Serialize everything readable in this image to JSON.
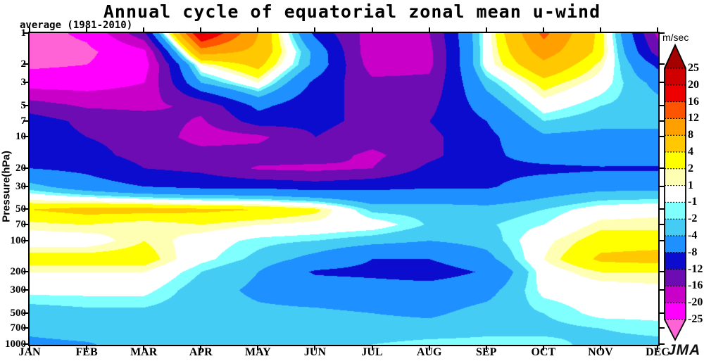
{
  "header": {
    "title": "Annual cycle of equatorial zonal mean u-wind",
    "subtitle": "average (1981-2010)"
  },
  "branding": {
    "logo_text": "JMA"
  },
  "colorbar": {
    "unit_label": "m/sec"
  },
  "chart_data": {
    "type": "filled_contour",
    "title": "Annual cycle of equatorial zonal mean u-wind",
    "subtitle": "average (1981-2010)",
    "units": "m/sec",
    "ylabel": "Pressure(hPa)",
    "y_scale": "log",
    "ylim_hpa": [
      1,
      1000
    ],
    "pressure_ticks": [
      1,
      2,
      3,
      5,
      7,
      10,
      20,
      30,
      50,
      70,
      100,
      200,
      300,
      500,
      700,
      1000
    ],
    "months": [
      "JAN",
      "FEB",
      "MAR",
      "APR",
      "MAY",
      "JUN",
      "JUL",
      "AUG",
      "SEP",
      "OCT",
      "NOV",
      "DEC"
    ],
    "contour_levels": [
      -25,
      -20,
      -16,
      -12,
      -8,
      -4,
      -2,
      -1,
      1,
      2,
      4,
      8,
      12,
      16,
      20,
      25
    ],
    "band_colors": [
      "#ff63d6",
      "#ff00ff",
      "#c800c8",
      "#6e0cb4",
      "#0c0cce",
      "#1e90ff",
      "#44ccf4",
      "#80ffff",
      "#ffffff",
      "#ffffb4",
      "#ffff00",
      "#ffc800",
      "#ffa000",
      "#ff5400",
      "#ee0000",
      "#d00000",
      "#a40000"
    ],
    "grid": [
      {
        "p": 1,
        "u": [
          -27,
          -24,
          -13,
          21,
          8,
          -9,
          -18,
          -16,
          0,
          13,
          3,
          -17
        ]
      },
      {
        "p": 1.5,
        "u": [
          -27,
          -26,
          -21,
          10,
          7,
          -5,
          -19,
          -17,
          0,
          10,
          3,
          -14
        ]
      },
      {
        "p": 2,
        "u": [
          -26,
          -25,
          -22,
          1,
          5,
          -5,
          -18,
          -17,
          0,
          7,
          1.5,
          -9
        ]
      },
      {
        "p": 3,
        "u": [
          -22,
          -22,
          -20,
          -4,
          1,
          -9,
          -15,
          -15,
          -3,
          3,
          0,
          -5
        ]
      },
      {
        "p": 5,
        "u": [
          -14,
          -16.5,
          -17,
          -15,
          -7,
          -11,
          -13,
          -13,
          -6,
          0,
          -2,
          -3
        ]
      },
      {
        "p": 7,
        "u": [
          -10,
          -13,
          -14,
          -16.5,
          -10,
          -11,
          -13,
          -12,
          -8,
          -2,
          -3,
          -3
        ]
      },
      {
        "p": 10,
        "u": [
          -10,
          -12,
          -13,
          -18,
          -17,
          -12,
          -14,
          -13,
          -9,
          -4.5,
          -5,
          -5
        ]
      },
      {
        "p": 15,
        "u": [
          -9,
          -11,
          -13,
          -14,
          -14,
          -14,
          -17,
          -13,
          -9,
          -6,
          -5,
          -6
        ]
      },
      {
        "p": 20,
        "u": [
          -8,
          -9,
          -12,
          -13,
          -16.5,
          -17,
          -16,
          -11,
          -9,
          -9,
          -8.5,
          -8.5
        ]
      },
      {
        "p": 30,
        "u": [
          -3,
          -6,
          -8,
          -9,
          -9,
          -10,
          -9,
          -8.5,
          -8.5,
          -6,
          -5,
          -5
        ]
      },
      {
        "p": 50,
        "u": [
          4,
          5,
          5,
          4.5,
          4,
          2.5,
          -2.5,
          -2.5,
          -3,
          -2,
          0,
          0.5
        ]
      },
      {
        "p": 70,
        "u": [
          1.5,
          2,
          1,
          2,
          1,
          0.5,
          0,
          -2.2,
          -2.2,
          -1,
          1.5,
          1.5
        ]
      },
      {
        "p": 100,
        "u": [
          0,
          0,
          2,
          0,
          -1.5,
          -2,
          -3,
          -4,
          -3,
          0.5,
          3,
          3
        ]
      },
      {
        "p": 150,
        "u": [
          3,
          3,
          3,
          -0.5,
          -2.5,
          -5,
          -8,
          -8,
          -5,
          1,
          4.5,
          5
        ]
      },
      {
        "p": 200,
        "u": [
          1,
          1,
          1,
          -2,
          -4,
          -8.5,
          -9,
          -10,
          -7.5,
          0,
          2,
          2
        ]
      },
      {
        "p": 300,
        "u": [
          -0.5,
          -0.5,
          -0.5,
          -3,
          -4.5,
          -5.5,
          -6,
          -6,
          -5,
          -0.5,
          0,
          0.5
        ]
      },
      {
        "p": 500,
        "u": [
          -3,
          -2.5,
          -2.5,
          -3,
          -3.5,
          -3.5,
          -4,
          -4.5,
          -3,
          -2,
          -0.5,
          -0.5
        ]
      },
      {
        "p": 700,
        "u": [
          -3.5,
          -3,
          -3,
          -3,
          -3,
          -3,
          -3,
          -3,
          -2.5,
          -2.5,
          -2,
          -1.5
        ]
      },
      {
        "p": 1000,
        "u": [
          -4.5,
          -4.2,
          -3,
          -2.5,
          -2.5,
          -2.5,
          -2,
          -1.5,
          -1.5,
          -1.5,
          -2.5,
          -2.5
        ]
      }
    ]
  }
}
